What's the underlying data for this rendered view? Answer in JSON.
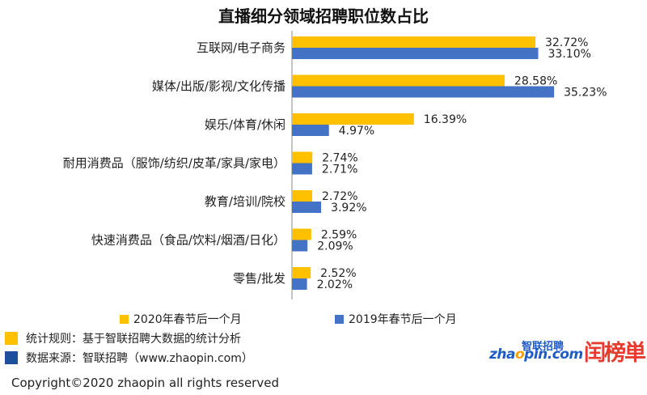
{
  "title": "直播细分领域招聘职位数占比",
  "chart_data": {
    "type": "bar",
    "orientation": "horizontal",
    "categories": [
      "互联网/电子商务",
      "媒体/出版/影视/文化传播",
      "娱乐/体育/休闲",
      "耐用消费品（服饰/纺织/皮革/家具/家电）",
      "教育/培训/院校",
      "快速消费品（食品/饮料/烟酒/日化）",
      "零售/批发"
    ],
    "series": [
      {
        "name": "2020年春节后一个月",
        "color": "#FFC000",
        "values": [
          32.72,
          28.58,
          16.39,
          2.74,
          2.72,
          2.59,
          2.52
        ],
        "labels": [
          "32.72%",
          "28.58%",
          "16.39%",
          "2.74%",
          "2.72%",
          "2.59%",
          "2.52%"
        ]
      },
      {
        "name": "2019年春节后一个月",
        "color": "#4472C4",
        "values": [
          33.1,
          35.23,
          4.97,
          2.71,
          3.92,
          2.09,
          2.02
        ],
        "labels": [
          "33.10%",
          "35.23%",
          "4.97%",
          "2.71%",
          "3.92%",
          "2.09%",
          "2.02%"
        ]
      }
    ],
    "unit": "%",
    "xlim": [
      0,
      40
    ],
    "grid": false,
    "legend_position": "bottom"
  },
  "notes": [
    {
      "text": "统计规则：基于智联招聘大数据的统计分析",
      "color": "#FFC000"
    },
    {
      "text": "数据来源：智联招聘（www.zhaopin.com）",
      "color": "#1F4E9C"
    }
  ],
  "logos": {
    "zhaopin_top": "智联招聘",
    "zhaopin_bottom_a": "zha",
    "zhaopin_bottom_o": "o",
    "zhaopin_bottom_b": "pin.com",
    "rank": "闰榜単"
  },
  "copyright": "Copyright©2020 zhaopin all rights reserved"
}
